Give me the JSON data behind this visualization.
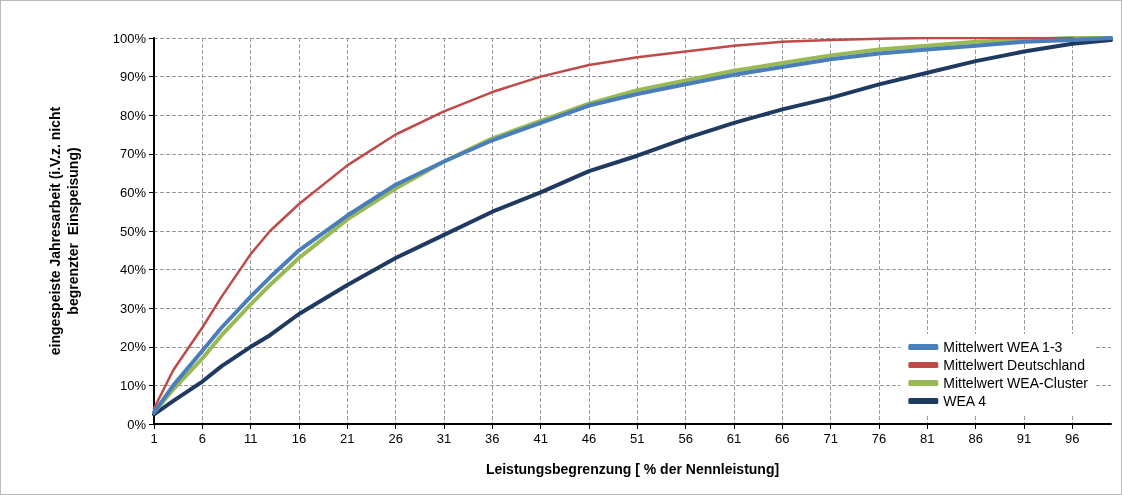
{
  "chart_data": {
    "type": "line",
    "xlabel": "Leistungsbegrenzung [ % der Nennleistung]",
    "ylabel": "eingespeiste Jahresarbeit (i.V.z. nicht\nbegrenzter  Einspeisung)",
    "x": [
      1,
      3,
      6,
      8,
      11,
      13,
      16,
      21,
      26,
      31,
      36,
      41,
      46,
      51,
      56,
      61,
      66,
      71,
      76,
      81,
      86,
      91,
      96,
      100
    ],
    "series": [
      {
        "name": "Mittelwert WEA 1-3",
        "color": "#4a7ebb",
        "values": [
          3,
          10,
          19,
          25,
          33,
          38,
          45,
          54,
          62,
          68,
          73.5,
          78,
          82.5,
          85.5,
          88,
          90.5,
          92.5,
          94.5,
          96,
          97,
          98,
          99,
          99.5,
          100
        ]
      },
      {
        "name": "Mittelwert Deutschland",
        "color": "#be4b48",
        "values": [
          4,
          14,
          25,
          33,
          44,
          50,
          57,
          67,
          75,
          81,
          86,
          90,
          93,
          95,
          96.5,
          98,
          99,
          99.5,
          99.8,
          100,
          100,
          100,
          100,
          null
        ]
      },
      {
        "name": "Mittelwert WEA-Cluster",
        "color": "#98b954",
        "values": [
          3,
          9,
          17,
          23,
          31,
          36,
          43,
          53,
          61,
          68,
          74,
          78.5,
          83,
          86.5,
          89,
          91.5,
          93.5,
          95.5,
          97,
          98,
          99,
          99.5,
          100,
          100
        ]
      },
      {
        "name": "WEA 4",
        "color": "#1f3a60",
        "values": [
          2.5,
          6,
          11,
          15,
          20,
          23,
          28.5,
          36,
          43,
          49,
          55,
          60,
          65.5,
          69.5,
          74,
          78,
          81.5,
          84.5,
          88,
          91,
          94,
          96.5,
          98.5,
          99.5
        ]
      }
    ],
    "xlim": [
      1,
      100
    ],
    "xticks": [
      1,
      6,
      11,
      16,
      21,
      26,
      31,
      36,
      41,
      46,
      51,
      56,
      61,
      66,
      71,
      76,
      81,
      86,
      91,
      96
    ],
    "ylim": [
      0,
      100
    ],
    "yticks": [
      {
        "value": 0,
        "label": "0%"
      },
      {
        "value": 10,
        "label": "10%"
      },
      {
        "value": 20,
        "label": "20%"
      },
      {
        "value": 30,
        "label": "30%"
      },
      {
        "value": 40,
        "label": "40%"
      },
      {
        "value": 50,
        "label": "50%"
      },
      {
        "value": 60,
        "label": "60%"
      },
      {
        "value": 70,
        "label": "70%"
      },
      {
        "value": 80,
        "label": "80%"
      },
      {
        "value": 90,
        "label": "90%"
      },
      {
        "value": 100,
        "label": "100%"
      }
    ],
    "grid": true,
    "legend": "bottom right",
    "marker": "none",
    "line_style": "solid"
  }
}
